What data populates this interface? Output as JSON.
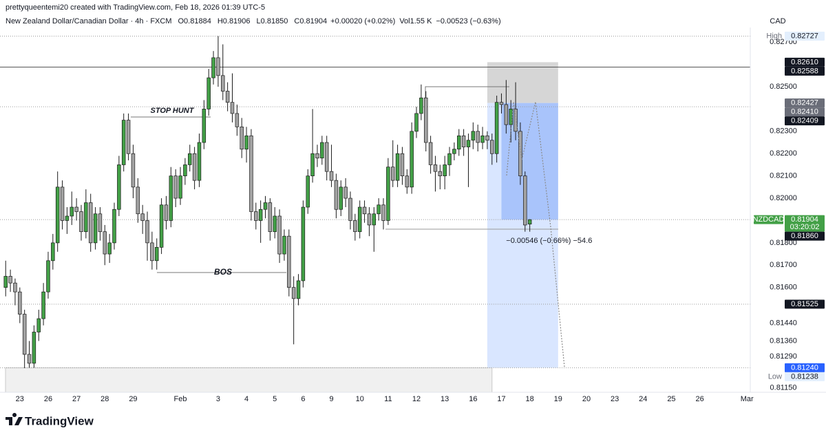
{
  "chart_data": {
    "type": "candlestick",
    "header": {
      "credit": "prettyqueentemi20 created with TradingView.com, Feb 18, 2026 01:39 UTC-5",
      "symbol": "New Zealand Dollar/Canadian Dollar · 4h · FXCM",
      "ohlc": [
        {
          "key": "O",
          "value": "0.81884"
        },
        {
          "key": "H",
          "value": "0.81906"
        },
        {
          "key": "L",
          "value": "0.81850"
        },
        {
          "key": "C",
          "value": "0.81904"
        }
      ],
      "change": "+0.00020 (+0.02%)",
      "volume_key": "Vol",
      "volume": "1.55 K",
      "session_change": "−0.00523 (−0.63%)",
      "currency": "CAD"
    },
    "up_color": "#43a047",
    "down_color": "#a3a3a3",
    "border_color": "#1a1a1a",
    "xlim": [
      -1.2,
      157.7
    ],
    "ylim": [
      0.8113,
      0.8275
    ],
    "xticks": [
      {
        "value": 3,
        "label": "23"
      },
      {
        "value": 9,
        "label": "26"
      },
      {
        "value": 15,
        "label": "27"
      },
      {
        "value": 21,
        "label": "28"
      },
      {
        "value": 27,
        "label": "29"
      },
      {
        "value": 37,
        "label": "Feb"
      },
      {
        "value": 45,
        "label": "3"
      },
      {
        "value": 51,
        "label": "4"
      },
      {
        "value": 57,
        "label": "5"
      },
      {
        "value": 63,
        "label": "6"
      },
      {
        "value": 69,
        "label": "9"
      },
      {
        "value": 75,
        "label": "10"
      },
      {
        "value": 81,
        "label": "11"
      },
      {
        "value": 87,
        "label": "12"
      },
      {
        "value": 93,
        "label": "13"
      },
      {
        "value": 99,
        "label": "16"
      },
      {
        "value": 105,
        "label": "17"
      },
      {
        "value": 111,
        "label": "18"
      },
      {
        "value": 117,
        "label": "19"
      },
      {
        "value": 123,
        "label": "20"
      },
      {
        "value": 129,
        "label": "23"
      },
      {
        "value": 135,
        "label": "24"
      },
      {
        "value": 141,
        "label": "25"
      },
      {
        "value": 147,
        "label": "26"
      },
      {
        "value": 157,
        "label": "Mar"
      }
    ],
    "yticks": [
      {
        "value": 0.827,
        "label": "0.82700"
      },
      {
        "value": 0.825,
        "label": "0.82500"
      },
      {
        "value": 0.823,
        "label": "0.82300"
      },
      {
        "value": 0.822,
        "label": "0.82200"
      },
      {
        "value": 0.821,
        "label": "0.82100"
      },
      {
        "value": 0.82,
        "label": "0.82000"
      },
      {
        "value": 0.818,
        "label": "0.81800"
      },
      {
        "value": 0.817,
        "label": "0.81700"
      },
      {
        "value": 0.816,
        "label": "0.81600"
      },
      {
        "value": 0.8144,
        "label": "0.81440"
      },
      {
        "value": 0.8136,
        "label": "0.81360"
      },
      {
        "value": 0.8129,
        "label": "0.81290"
      },
      {
        "value": 0.8115,
        "label": "0.81150"
      }
    ],
    "candles": [
      [
        0.816,
        0.8172,
        0.8156,
        0.8165
      ],
      [
        0.8165,
        0.8168,
        0.8158,
        0.8162
      ],
      [
        0.8162,
        0.8164,
        0.8152,
        0.8158
      ],
      [
        0.8158,
        0.816,
        0.8144,
        0.8148
      ],
      [
        0.8148,
        0.815,
        0.81238,
        0.813
      ],
      [
        0.813,
        0.8136,
        0.8124,
        0.8126
      ],
      [
        0.8126,
        0.8143,
        0.8124,
        0.814
      ],
      [
        0.814,
        0.815,
        0.8136,
        0.8146
      ],
      [
        0.8146,
        0.8162,
        0.8143,
        0.8158
      ],
      [
        0.8158,
        0.8176,
        0.8155,
        0.8172
      ],
      [
        0.8172,
        0.8184,
        0.8168,
        0.818
      ],
      [
        0.818,
        0.8212,
        0.8176,
        0.8205
      ],
      [
        0.8205,
        0.8208,
        0.8186,
        0.819
      ],
      [
        0.819,
        0.8196,
        0.8184,
        0.8192
      ],
      [
        0.8192,
        0.8203,
        0.8188,
        0.8196
      ],
      [
        0.8196,
        0.82,
        0.819,
        0.8194
      ],
      [
        0.8194,
        0.8197,
        0.8181,
        0.8185
      ],
      [
        0.8185,
        0.8204,
        0.8182,
        0.8198
      ],
      [
        0.8198,
        0.8202,
        0.8176,
        0.818
      ],
      [
        0.818,
        0.8196,
        0.8177,
        0.8193
      ],
      [
        0.8193,
        0.8196,
        0.8181,
        0.8185
      ],
      [
        0.8185,
        0.8188,
        0.817,
        0.8175
      ],
      [
        0.8175,
        0.8184,
        0.8171,
        0.818
      ],
      [
        0.818,
        0.8198,
        0.8177,
        0.8195
      ],
      [
        0.8195,
        0.8219,
        0.8192,
        0.8215
      ],
      [
        0.8215,
        0.8238,
        0.8212,
        0.8235
      ],
      [
        0.8235,
        0.8238,
        0.8217,
        0.822
      ],
      [
        0.822,
        0.8224,
        0.82,
        0.8205
      ],
      [
        0.8205,
        0.8209,
        0.8189,
        0.8193
      ],
      [
        0.8193,
        0.8197,
        0.8184,
        0.819
      ],
      [
        0.819,
        0.8194,
        0.8172,
        0.818
      ],
      [
        0.818,
        0.8185,
        0.8168,
        0.8172
      ],
      [
        0.8172,
        0.8182,
        0.8168,
        0.8178
      ],
      [
        0.8178,
        0.82,
        0.8175,
        0.8197
      ],
      [
        0.8197,
        0.8201,
        0.8186,
        0.819
      ],
      [
        0.819,
        0.8214,
        0.8187,
        0.821
      ],
      [
        0.821,
        0.8213,
        0.8196,
        0.82
      ],
      [
        0.82,
        0.8214,
        0.8197,
        0.821
      ],
      [
        0.821,
        0.8218,
        0.8206,
        0.8215
      ],
      [
        0.8215,
        0.8224,
        0.8212,
        0.822
      ],
      [
        0.822,
        0.8223,
        0.8204,
        0.8208
      ],
      [
        0.8208,
        0.8229,
        0.8205,
        0.8225
      ],
      [
        0.8225,
        0.8244,
        0.8222,
        0.824
      ],
      [
        0.824,
        0.8258,
        0.8237,
        0.8254
      ],
      [
        0.8254,
        0.8266,
        0.8251,
        0.8263
      ],
      [
        0.8263,
        0.82727,
        0.825,
        0.8255
      ],
      [
        0.8255,
        0.8269,
        0.8244,
        0.8248
      ],
      [
        0.8248,
        0.8252,
        0.8239,
        0.8243
      ],
      [
        0.8243,
        0.8256,
        0.8234,
        0.8238
      ],
      [
        0.8238,
        0.8242,
        0.8228,
        0.8232
      ],
      [
        0.8232,
        0.8236,
        0.8218,
        0.8222
      ],
      [
        0.8222,
        0.8232,
        0.8216,
        0.8228
      ],
      [
        0.8228,
        0.8231,
        0.819,
        0.8194
      ],
      [
        0.8194,
        0.8198,
        0.8186,
        0.819
      ],
      [
        0.819,
        0.8199,
        0.818,
        0.8195
      ],
      [
        0.8195,
        0.8201,
        0.8191,
        0.8198
      ],
      [
        0.8198,
        0.82,
        0.8181,
        0.8185
      ],
      [
        0.8185,
        0.8196,
        0.8182,
        0.8192
      ],
      [
        0.8192,
        0.8195,
        0.8171,
        0.8175
      ],
      [
        0.8175,
        0.8186,
        0.8172,
        0.8183
      ],
      [
        0.8183,
        0.8186,
        0.8156,
        0.816
      ],
      [
        0.816,
        0.8165,
        0.81345,
        0.8155
      ],
      [
        0.8155,
        0.8166,
        0.8152,
        0.8163
      ],
      [
        0.8163,
        0.8199,
        0.816,
        0.8196
      ],
      [
        0.8196,
        0.8213,
        0.8193,
        0.821
      ],
      [
        0.821,
        0.824,
        0.8207,
        0.822
      ],
      [
        0.822,
        0.8224,
        0.8214,
        0.8218
      ],
      [
        0.8218,
        0.8228,
        0.8215,
        0.8225
      ],
      [
        0.8225,
        0.8228,
        0.8208,
        0.8212
      ],
      [
        0.8212,
        0.8224,
        0.8205,
        0.8208
      ],
      [
        0.8208,
        0.8211,
        0.8191,
        0.8195
      ],
      [
        0.8195,
        0.8208,
        0.8192,
        0.8205
      ],
      [
        0.8205,
        0.8209,
        0.8196,
        0.82
      ],
      [
        0.82,
        0.8203,
        0.8186,
        0.819
      ],
      [
        0.819,
        0.8193,
        0.8181,
        0.8185
      ],
      [
        0.8185,
        0.8199,
        0.8182,
        0.8196
      ],
      [
        0.8196,
        0.8199,
        0.8189,
        0.8193
      ],
      [
        0.8193,
        0.8196,
        0.8183,
        0.8188
      ],
      [
        0.8188,
        0.8196,
        0.8176,
        0.8193
      ],
      [
        0.8193,
        0.82,
        0.819,
        0.8197
      ],
      [
        0.8197,
        0.82,
        0.8186,
        0.819
      ],
      [
        0.819,
        0.8218,
        0.8188,
        0.8214
      ],
      [
        0.8214,
        0.8226,
        0.8205,
        0.8208
      ],
      [
        0.8208,
        0.8224,
        0.8205,
        0.822
      ],
      [
        0.822,
        0.8223,
        0.8206,
        0.821
      ],
      [
        0.821,
        0.8213,
        0.8202,
        0.8205
      ],
      [
        0.8205,
        0.8234,
        0.8202,
        0.823
      ],
      [
        0.823,
        0.8241,
        0.8227,
        0.8238
      ],
      [
        0.8238,
        0.8251,
        0.8235,
        0.8245
      ],
      [
        0.8245,
        0.8248,
        0.8221,
        0.8225
      ],
      [
        0.8225,
        0.8228,
        0.8211,
        0.8215
      ],
      [
        0.8215,
        0.8219,
        0.8203,
        0.8212
      ],
      [
        0.8212,
        0.8215,
        0.8204,
        0.821
      ],
      [
        0.821,
        0.8219,
        0.8204,
        0.8215
      ],
      [
        0.8215,
        0.8223,
        0.821,
        0.822
      ],
      [
        0.822,
        0.8225,
        0.8217,
        0.8222
      ],
      [
        0.8222,
        0.8231,
        0.8219,
        0.8228
      ],
      [
        0.8228,
        0.8231,
        0.8219,
        0.8223
      ],
      [
        0.8223,
        0.8229,
        0.8205,
        0.8226
      ],
      [
        0.8226,
        0.8234,
        0.8222,
        0.823
      ],
      [
        0.823,
        0.8233,
        0.8221,
        0.8225
      ],
      [
        0.8225,
        0.8232,
        0.8222,
        0.8228
      ],
      [
        0.8228,
        0.823,
        0.8222,
        0.8226
      ],
      [
        0.8226,
        0.8229,
        0.8215,
        0.822
      ],
      [
        0.822,
        0.8246,
        0.8216,
        0.8243
      ],
      [
        0.8243,
        0.8247,
        0.8238,
        0.8242
      ],
      [
        0.8242,
        0.8253,
        0.8229,
        0.8233
      ],
      [
        0.8233,
        0.8244,
        0.8225,
        0.824
      ],
      [
        0.824,
        0.8252,
        0.8226,
        0.823
      ],
      [
        0.823,
        0.8234,
        0.8206,
        0.821
      ],
      [
        0.821,
        0.8212,
        0.8185,
        0.8188
      ],
      [
        0.81884,
        0.81906,
        0.8185,
        0.81904
      ]
    ],
    "levels": [
      {
        "value": 0.82727,
        "label": "0.82727",
        "name": "High",
        "bg": "#e3effd",
        "fg": "#131722",
        "line": "dotted"
      },
      {
        "value": 0.8261,
        "label": "0.82610",
        "bg": "#131722",
        "fg": "#ffffff",
        "line": "none"
      },
      {
        "value": 0.82588,
        "label": "0.82588",
        "bg": "#131722",
        "fg": "#ffffff",
        "line": "solid"
      },
      {
        "value": 0.82427,
        "label": "0.82427",
        "bg": "#6a6d78",
        "fg": "#ffffff",
        "line": "none"
      },
      {
        "value": 0.8241,
        "label": "0.82410",
        "bg": "#6a6d78",
        "fg": "#ffffff",
        "line": "dotted"
      },
      {
        "value": 0.82409,
        "label": "0.82409",
        "bg": "#131722",
        "fg": "#ffffff",
        "line": "none"
      },
      {
        "value": 0.81904,
        "label": "0.81904",
        "name": "NZDCAD",
        "countdown": "03:20:02",
        "bg": "#43a047",
        "fg": "#ffffff",
        "line": "dotted"
      },
      {
        "value": 0.8186,
        "label": "0.81860",
        "bg": "#131722",
        "fg": "#ffffff",
        "line": "none"
      },
      {
        "value": 0.81525,
        "label": "0.81525",
        "bg": "#131722",
        "fg": "#ffffff",
        "line": "dotted"
      },
      {
        "value": 0.8124,
        "label": "0.81240",
        "bg": "#2962ff",
        "fg": "#ffffff",
        "line": "dotted"
      },
      {
        "value": 0.81238,
        "label": "0.81238",
        "name": "Low",
        "bg": "#e3effd",
        "fg": "#131722",
        "line": "none"
      }
    ],
    "position": {
      "stop": 0.8261,
      "entry": 0.82427,
      "current": 0.81904,
      "target": 0.8124,
      "x_start": 102,
      "x_trigger": 105,
      "x_end": 117,
      "label": "−0.00546 (−0.66%) −54.6"
    },
    "zone": {
      "top": 0.8124,
      "x_end": 103
    },
    "annotations": {
      "stop_hunt": "STOP HUNT",
      "bos": "BOS"
    }
  },
  "footer": {
    "brand": "TradingView"
  }
}
